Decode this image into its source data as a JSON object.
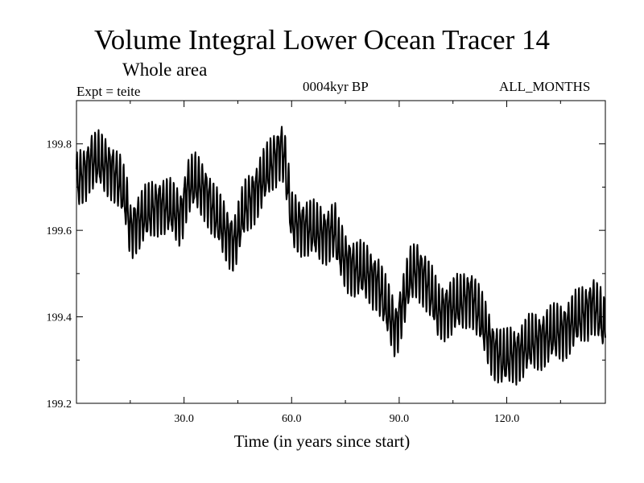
{
  "chart_data": {
    "type": "line",
    "title": "Volume Integral Lower Ocean Tracer 14",
    "subtitle": "Whole area",
    "experiment_label": "Expt = teite",
    "period_label": "0004kyr BP",
    "months_label": "ALL_MONTHS",
    "xlabel": "Time (in years since start)",
    "ylabel": "",
    "xlim": [
      0,
      147.5
    ],
    "ylim": [
      199.2,
      199.9
    ],
    "x_ticks": [
      {
        "value": 30,
        "label": "30.0"
      },
      {
        "value": 60,
        "label": "60.0"
      },
      {
        "value": 90,
        "label": "90.0"
      },
      {
        "value": 120,
        "label": "120.0"
      }
    ],
    "y_ticks": [
      {
        "value": 199.2,
        "label": "199.2"
      },
      {
        "value": 199.4,
        "label": "199.4"
      },
      {
        "value": 199.6,
        "label": "199.6"
      },
      {
        "value": 199.8,
        "label": "199.8"
      }
    ],
    "seasonal_amplitude": 0.055,
    "series": [
      {
        "name": "Lower Ocean Tracer 14",
        "color": "#000000",
        "note": "annual-mean trend (data units); plotted with a seasonal cycle of the given amplitude",
        "x": [
          0,
          2,
          4,
          6,
          8,
          10,
          12,
          14,
          15,
          17,
          20,
          23,
          26,
          29,
          31,
          33,
          36,
          39,
          42,
          44,
          47,
          50,
          53,
          55,
          57,
          58,
          60,
          63,
          66,
          69,
          72,
          73,
          75,
          78,
          81,
          84,
          86,
          88,
          89,
          91,
          93,
          95,
          97,
          99,
          101,
          104,
          107,
          110,
          112,
          114,
          116,
          118,
          119,
          121,
          124,
          127,
          130,
          133,
          136,
          139,
          142,
          144,
          146,
          147.5
        ],
        "values": [
          199.71,
          199.73,
          199.76,
          199.76,
          199.75,
          199.74,
          199.71,
          199.66,
          199.6,
          199.62,
          199.64,
          199.66,
          199.65,
          199.63,
          199.7,
          199.71,
          199.69,
          199.63,
          199.59,
          199.57,
          199.65,
          199.69,
          199.73,
          199.76,
          199.79,
          199.77,
          199.62,
          199.61,
          199.6,
          199.59,
          199.6,
          199.56,
          199.53,
          199.51,
          199.5,
          199.48,
          199.43,
          199.39,
          199.37,
          199.43,
          199.49,
          199.51,
          199.49,
          199.45,
          199.41,
          199.42,
          199.43,
          199.45,
          199.41,
          199.37,
          199.33,
          199.31,
          199.3,
          199.31,
          199.32,
          199.34,
          199.35,
          199.36,
          199.37,
          199.39,
          199.41,
          199.43,
          199.4,
          199.37
        ]
      }
    ]
  }
}
